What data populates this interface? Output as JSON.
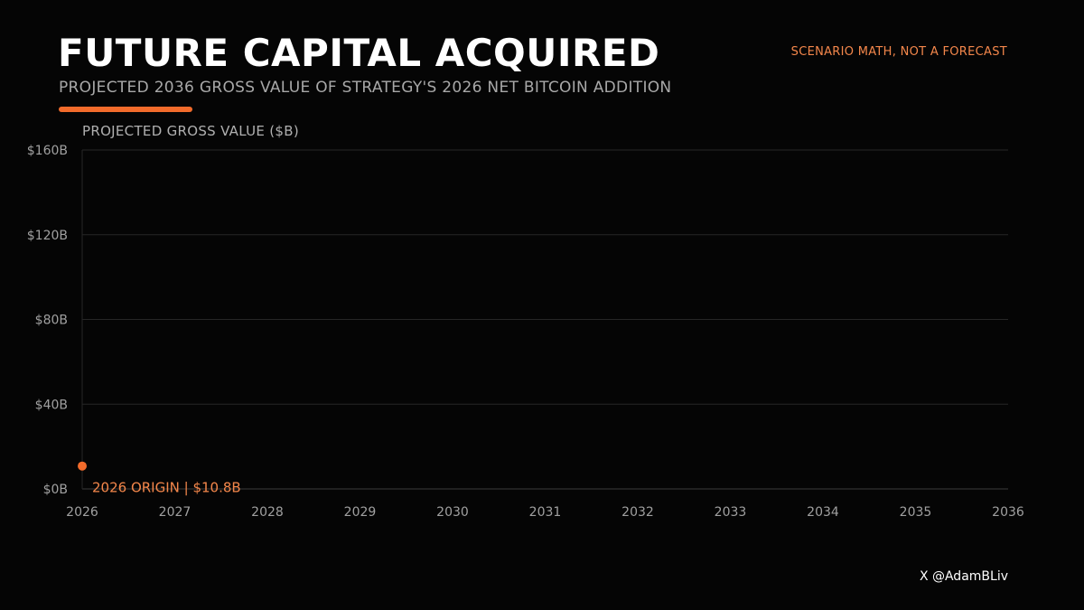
{
  "header": {
    "title": "FUTURE CAPITAL ACQUIRED",
    "subtitle": "PROJECTED 2036 GROSS VALUE OF STRATEGY'S 2026 NET BITCOIN ADDITION",
    "disclaimer": "SCENARIO MATH, NOT A FORECAST"
  },
  "footer": {
    "credit": "X @AdamBLiv"
  },
  "colors": {
    "accent": "#f26b2b",
    "disclaimer": "#f4874b",
    "grid": "#262626",
    "axis_text": "#a0a0a0"
  },
  "chart_data": {
    "type": "line",
    "ylabel": "PROJECTED GROSS VALUE ($B)",
    "xlabel": "",
    "xlim": [
      2026,
      2036
    ],
    "ylim": [
      0,
      160
    ],
    "x_ticks": [
      2026,
      2027,
      2028,
      2029,
      2030,
      2031,
      2032,
      2033,
      2034,
      2035,
      2036
    ],
    "y_ticks": [
      {
        "value": 0,
        "label": "$0B"
      },
      {
        "value": 40,
        "label": "$40B"
      },
      {
        "value": 80,
        "label": "$80B"
      },
      {
        "value": 120,
        "label": "$120B"
      },
      {
        "value": 160,
        "label": "$160B"
      }
    ],
    "grid": true,
    "series": [
      {
        "points": [
          {
            "x": 2026,
            "y": 10.8
          }
        ]
      }
    ],
    "annotation": {
      "x": 2026,
      "y": 10.8,
      "text": "2026 ORIGIN  |  $10.8B"
    }
  }
}
